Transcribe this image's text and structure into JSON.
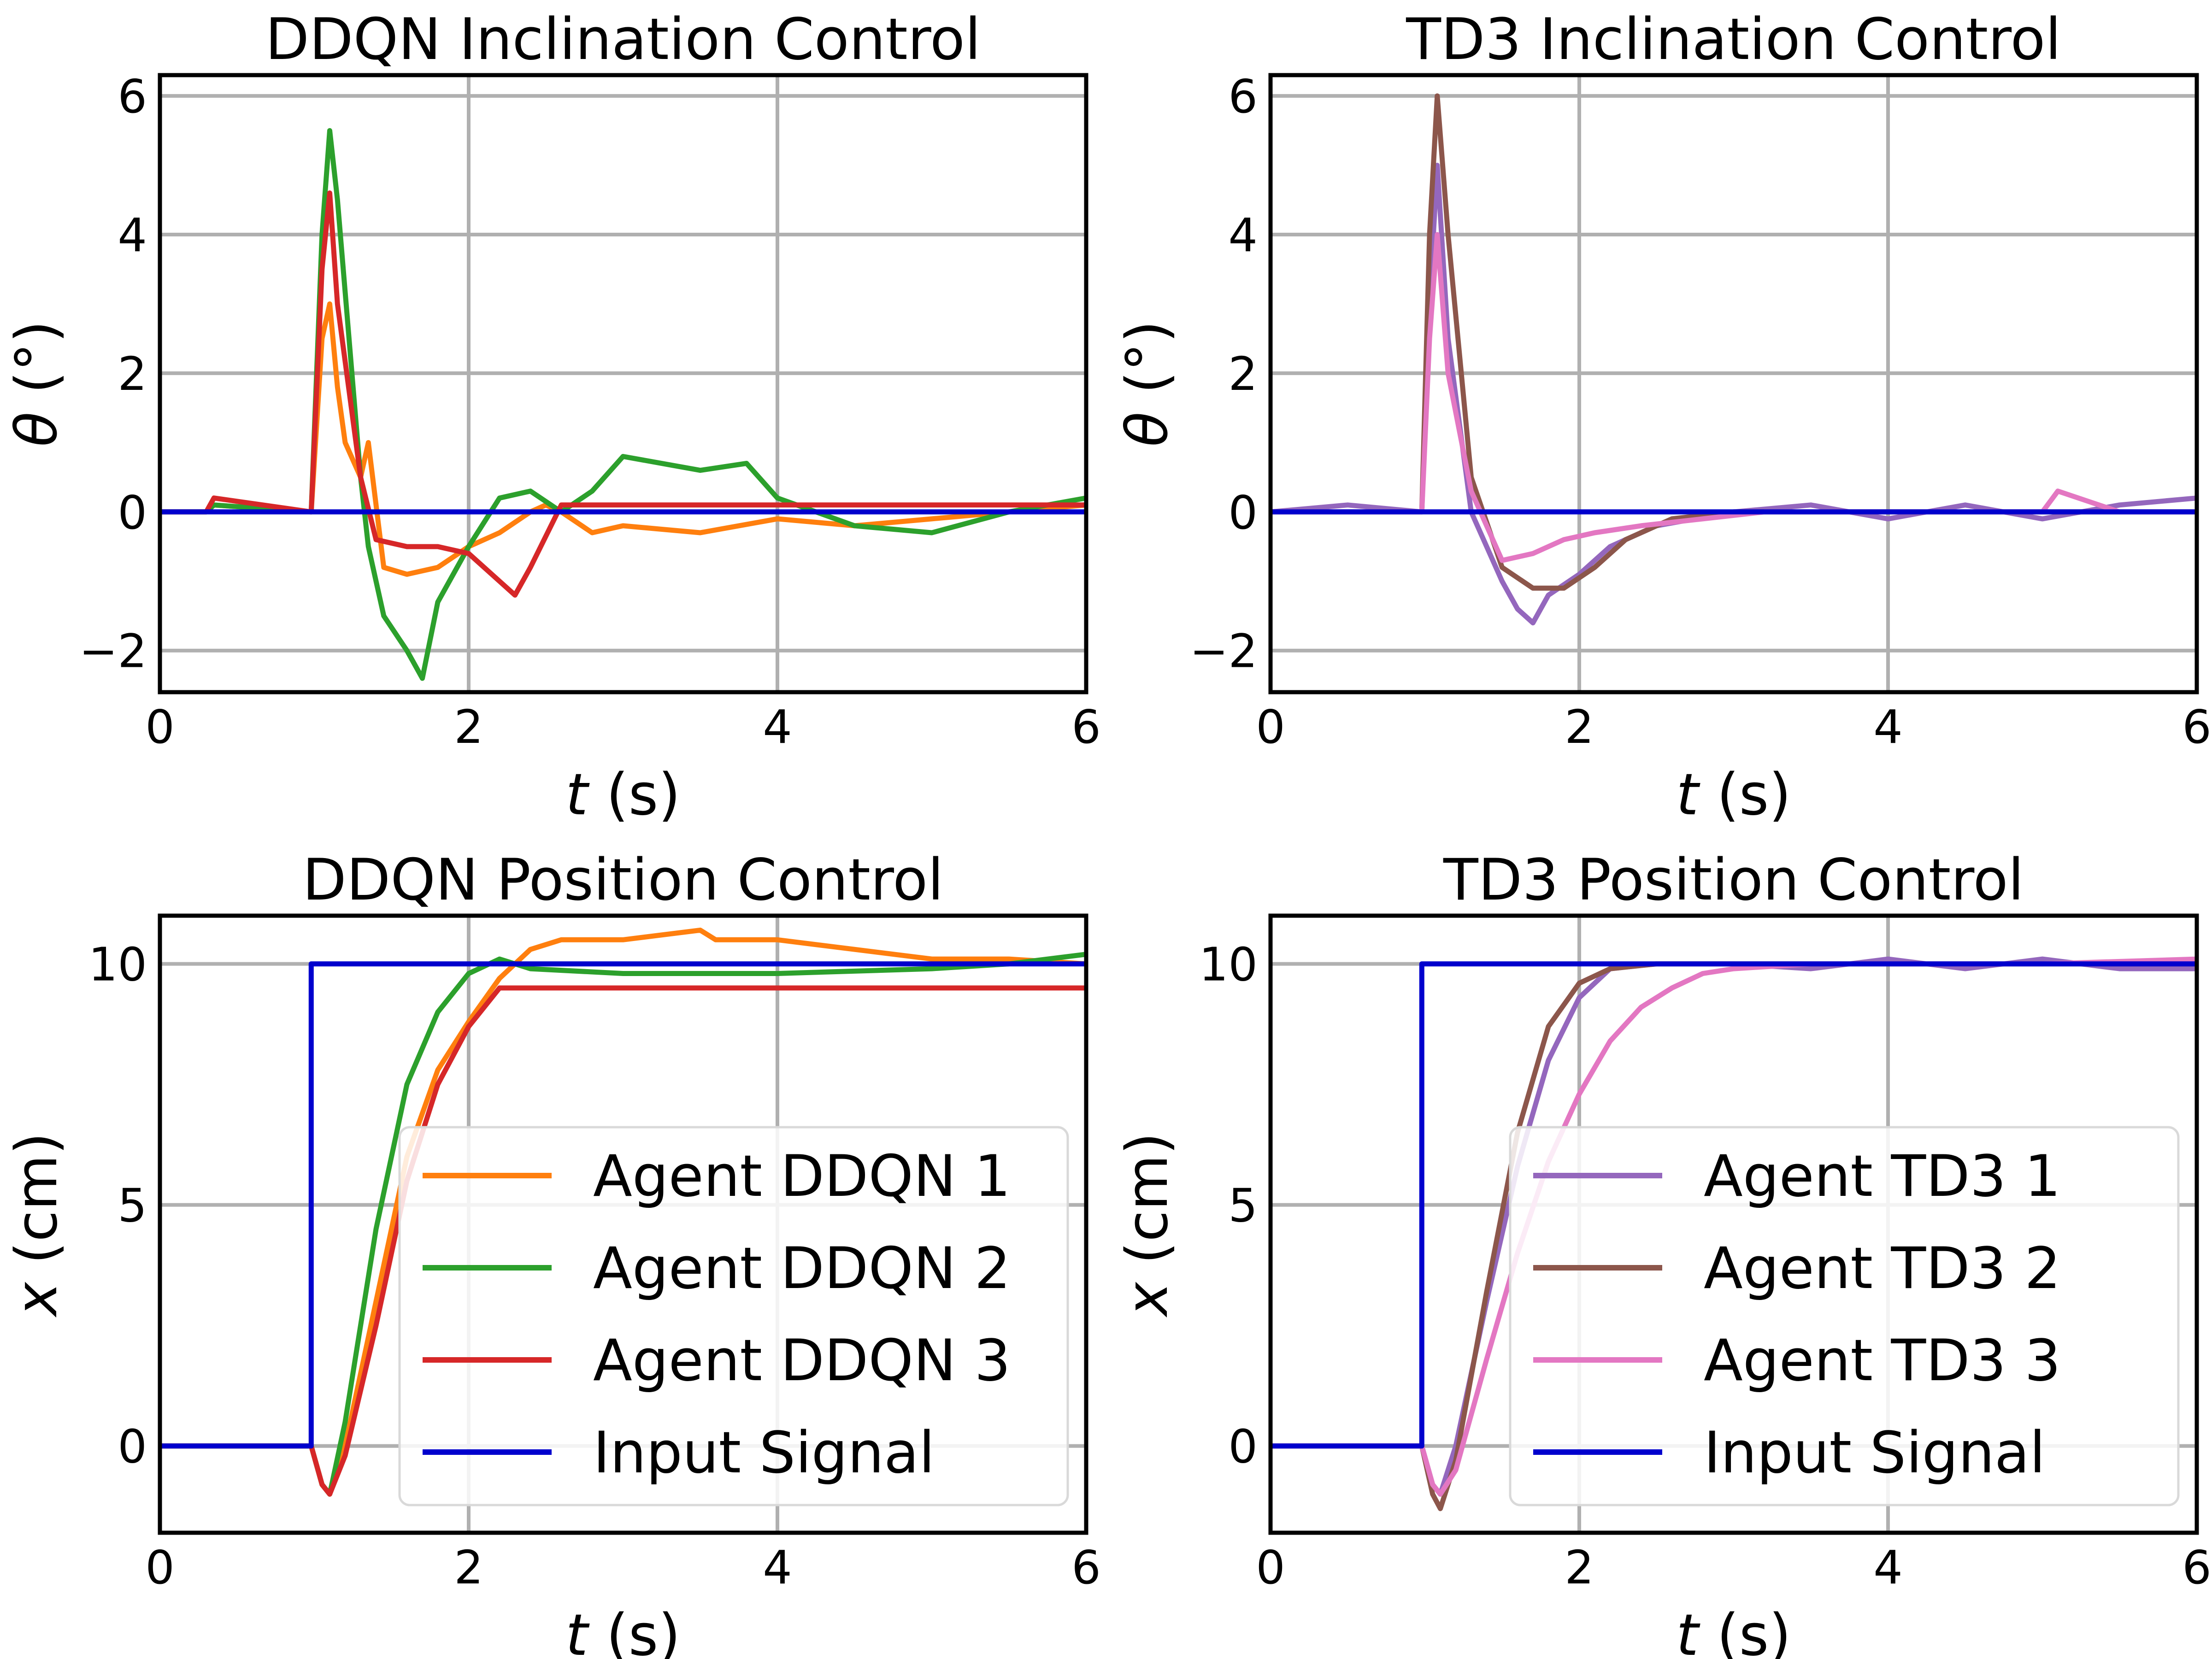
{
  "chart_data": [
    {
      "type": "line",
      "title": "DDQN Inclination Control",
      "xlabel_var": "t",
      "xlabel_unit": " (s)",
      "ylabel_var": "θ",
      "ylabel_unit": " (°)",
      "xlim": [
        0,
        6
      ],
      "ylim": [
        -2.6,
        6.3
      ],
      "xticks": [
        0,
        2,
        4,
        6
      ],
      "yticks": [
        -2,
        0,
        2,
        4,
        6
      ],
      "ytick_labels": [
        "−2",
        "0",
        "2",
        "4",
        "6"
      ],
      "grid": true,
      "legend": null,
      "series": [
        {
          "color": "#ff7f0e",
          "x": [
            0,
            0.3,
            0.35,
            0.98,
            1.05,
            1.1,
            1.15,
            1.2,
            1.3,
            1.35,
            1.45,
            1.6,
            1.8,
            2.0,
            2.2,
            2.4,
            2.5,
            2.6,
            2.8,
            3.0,
            3.5,
            4.0,
            4.5,
            5.0,
            5.5,
            6.0
          ],
          "y": [
            0.0,
            0.0,
            0.1,
            0.0,
            2.5,
            3.0,
            1.8,
            1.0,
            0.5,
            1.0,
            -0.8,
            -0.9,
            -0.8,
            -0.5,
            -0.3,
            0.0,
            0.1,
            0.0,
            -0.3,
            -0.2,
            -0.3,
            -0.1,
            -0.2,
            -0.1,
            0.0,
            0.1
          ]
        },
        {
          "color": "#2ca02c",
          "x": [
            0,
            0.3,
            0.35,
            0.98,
            1.05,
            1.1,
            1.15,
            1.3,
            1.35,
            1.45,
            1.6,
            1.7,
            1.8,
            2.0,
            2.2,
            2.4,
            2.6,
            2.8,
            3.0,
            3.5,
            3.8,
            4.0,
            4.5,
            5.0,
            5.5,
            6.0
          ],
          "y": [
            0.0,
            0.0,
            0.1,
            0.0,
            4.0,
            5.5,
            4.5,
            0.5,
            -0.5,
            -1.5,
            -2.0,
            -2.4,
            -1.3,
            -0.5,
            0.2,
            0.3,
            0.0,
            0.3,
            0.8,
            0.6,
            0.7,
            0.2,
            -0.2,
            -0.3,
            0.0,
            0.2
          ]
        },
        {
          "color": "#d62728",
          "x": [
            0,
            0.3,
            0.35,
            0.98,
            1.05,
            1.1,
            1.15,
            1.3,
            1.4,
            1.6,
            1.8,
            2.0,
            2.2,
            2.3,
            2.4,
            2.6,
            2.8,
            3.0,
            3.5,
            4.0,
            4.5,
            5.0,
            5.5,
            6.0
          ],
          "y": [
            0.0,
            0.0,
            0.2,
            0.0,
            3.5,
            4.6,
            3.0,
            0.5,
            -0.4,
            -0.5,
            -0.5,
            -0.6,
            -1.0,
            -1.2,
            -0.8,
            0.1,
            0.1,
            0.1,
            0.1,
            0.1,
            0.1,
            0.1,
            0.1,
            0.1
          ]
        },
        {
          "color": "#0000cd",
          "x": [
            0,
            6
          ],
          "y": [
            0,
            0
          ]
        }
      ]
    },
    {
      "type": "line",
      "title": "TD3 Inclination Control",
      "xlabel_var": "t",
      "xlabel_unit": " (s)",
      "ylabel_var": "θ",
      "ylabel_unit": " (°)",
      "xlim": [
        0,
        6
      ],
      "ylim": [
        -2.6,
        6.3
      ],
      "xticks": [
        0,
        2,
        4,
        6
      ],
      "yticks": [
        -2,
        0,
        2,
        4,
        6
      ],
      "ytick_labels": [
        "−2",
        "0",
        "2",
        "4",
        "6"
      ],
      "grid": true,
      "legend": null,
      "series": [
        {
          "color": "#9467bd",
          "x": [
            0,
            0.5,
            0.98,
            1.03,
            1.08,
            1.15,
            1.3,
            1.5,
            1.6,
            1.7,
            1.8,
            2.0,
            2.2,
            2.5,
            3.0,
            3.5,
            4.0,
            4.5,
            5.0,
            5.5,
            6.0
          ],
          "y": [
            0.0,
            0.1,
            0.0,
            3.0,
            5.0,
            2.5,
            0.0,
            -1.0,
            -1.4,
            -1.6,
            -1.2,
            -0.9,
            -0.5,
            -0.2,
            0.0,
            0.1,
            -0.1,
            0.1,
            -0.1,
            0.1,
            0.2
          ]
        },
        {
          "color": "#8c564b",
          "x": [
            0,
            0.98,
            1.03,
            1.08,
            1.15,
            1.3,
            1.5,
            1.7,
            1.9,
            2.1,
            2.3,
            2.6,
            3.0,
            3.5,
            4.0,
            5.0,
            6.0
          ],
          "y": [
            0.0,
            0.0,
            4.0,
            6.0,
            4.0,
            0.5,
            -0.8,
            -1.1,
            -1.1,
            -0.8,
            -0.4,
            -0.1,
            0.0,
            0.0,
            0.0,
            0.0,
            0.0
          ]
        },
        {
          "color": "#e377c2",
          "x": [
            0,
            0.98,
            1.03,
            1.08,
            1.15,
            1.3,
            1.5,
            1.7,
            1.9,
            2.1,
            2.4,
            2.8,
            3.2,
            3.6,
            4.0,
            4.5,
            5.0,
            5.1,
            5.5,
            6.0
          ],
          "y": [
            0.0,
            0.0,
            2.5,
            4.0,
            2.0,
            0.3,
            -0.7,
            -0.6,
            -0.4,
            -0.3,
            -0.2,
            -0.1,
            0.0,
            0.0,
            0.0,
            0.0,
            0.0,
            0.3,
            0.0,
            0.0
          ]
        },
        {
          "color": "#0000cd",
          "x": [
            0,
            6
          ],
          "y": [
            0,
            0
          ]
        }
      ]
    },
    {
      "type": "line",
      "title": "DDQN Position Control",
      "xlabel_var": "t",
      "xlabel_unit": " (s)",
      "ylabel_var": "x",
      "ylabel_unit": " (cm)",
      "xlim": [
        0,
        6
      ],
      "ylim": [
        -1.8,
        11.0
      ],
      "xticks": [
        0,
        2,
        4,
        6
      ],
      "yticks": [
        0,
        5,
        10
      ],
      "ytick_labels": [
        "0",
        "5",
        "10"
      ],
      "grid": true,
      "legend": {
        "position": "lower right",
        "entries": [
          "Agent DDQN 1",
          "Agent DDQN 2",
          "Agent DDQN 3",
          "Input Signal"
        ]
      },
      "series": [
        {
          "name": "Agent DDQN 1",
          "color": "#ff7f0e",
          "x": [
            0,
            0.98,
            1.05,
            1.1,
            1.2,
            1.4,
            1.6,
            1.8,
            2.0,
            2.2,
            2.4,
            2.6,
            3.0,
            3.5,
            3.6,
            4.0,
            4.5,
            5.0,
            5.5,
            6.0
          ],
          "y": [
            0.0,
            0.0,
            -0.8,
            -1.0,
            0.0,
            3.0,
            6.0,
            7.8,
            8.8,
            9.7,
            10.3,
            10.5,
            10.5,
            10.7,
            10.5,
            10.5,
            10.3,
            10.1,
            10.1,
            10.0
          ]
        },
        {
          "name": "Agent DDQN 2",
          "color": "#2ca02c",
          "x": [
            0,
            0.98,
            1.05,
            1.1,
            1.2,
            1.4,
            1.6,
            1.8,
            2.0,
            2.2,
            2.4,
            3.0,
            3.5,
            4.0,
            5.0,
            5.5,
            6.0
          ],
          "y": [
            0.0,
            0.0,
            -0.8,
            -1.0,
            0.5,
            4.5,
            7.5,
            9.0,
            9.8,
            10.1,
            9.9,
            9.8,
            9.8,
            9.8,
            9.9,
            10.0,
            10.2
          ]
        },
        {
          "name": "Agent DDQN 3",
          "color": "#d62728",
          "x": [
            0,
            0.98,
            1.05,
            1.1,
            1.2,
            1.4,
            1.6,
            1.8,
            2.0,
            2.2,
            2.4,
            3.0,
            4.0,
            5.0,
            6.0
          ],
          "y": [
            0.0,
            0.0,
            -0.8,
            -1.0,
            -0.2,
            2.5,
            5.5,
            7.5,
            8.7,
            9.5,
            9.5,
            9.5,
            9.5,
            9.5,
            9.5
          ]
        },
        {
          "name": "Input Signal",
          "color": "#0000cd",
          "x": [
            0,
            0.98,
            0.98,
            6
          ],
          "y": [
            0,
            0,
            10,
            10
          ]
        }
      ]
    },
    {
      "type": "line",
      "title": "TD3 Position Control",
      "xlabel_var": "t",
      "xlabel_unit": " (s)",
      "ylabel_var": "x",
      "ylabel_unit": " (cm)",
      "xlim": [
        0,
        6
      ],
      "ylim": [
        -1.8,
        11.0
      ],
      "xticks": [
        0,
        2,
        4,
        6
      ],
      "yticks": [
        0,
        5,
        10
      ],
      "ytick_labels": [
        "0",
        "5",
        "10"
      ],
      "grid": true,
      "legend": {
        "position": "lower right",
        "entries": [
          "Agent TD3 1",
          "Agent TD3 2",
          "Agent TD3 3",
          "Input Signal"
        ]
      },
      "series": [
        {
          "name": "Agent TD3 1",
          "color": "#9467bd",
          "x": [
            0,
            0.98,
            1.05,
            1.1,
            1.2,
            1.4,
            1.6,
            1.8,
            2.0,
            2.2,
            2.5,
            3.0,
            3.5,
            4.0,
            4.5,
            5.0,
            5.5,
            6.0
          ],
          "y": [
            0.0,
            0.0,
            -0.8,
            -1.0,
            0.0,
            3.0,
            5.8,
            8.0,
            9.3,
            9.9,
            10.0,
            10.0,
            9.9,
            10.1,
            9.9,
            10.1,
            9.9,
            9.9
          ]
        },
        {
          "name": "Agent TD3 2",
          "color": "#8c564b",
          "x": [
            0,
            0.98,
            1.05,
            1.1,
            1.2,
            1.4,
            1.6,
            1.8,
            2.0,
            2.2,
            2.5,
            3.0,
            4.0,
            5.0,
            6.0
          ],
          "y": [
            0.0,
            0.0,
            -1.0,
            -1.3,
            -0.3,
            3.2,
            6.5,
            8.7,
            9.6,
            9.9,
            10.0,
            10.0,
            10.0,
            10.0,
            10.0
          ]
        },
        {
          "name": "Agent TD3 3",
          "color": "#e377c2",
          "x": [
            0,
            0.98,
            1.05,
            1.1,
            1.2,
            1.4,
            1.6,
            1.8,
            2.0,
            2.2,
            2.4,
            2.6,
            2.8,
            3.0,
            3.5,
            4.0,
            5.0,
            6.0
          ],
          "y": [
            0.0,
            0.0,
            -0.8,
            -1.0,
            -0.5,
            1.8,
            4.0,
            5.9,
            7.3,
            8.4,
            9.1,
            9.5,
            9.8,
            9.9,
            10.0,
            10.0,
            10.0,
            10.1
          ]
        },
        {
          "name": "Input Signal",
          "color": "#0000cd",
          "x": [
            0,
            0.98,
            0.98,
            6
          ],
          "y": [
            0,
            0,
            10,
            10
          ]
        }
      ]
    }
  ]
}
